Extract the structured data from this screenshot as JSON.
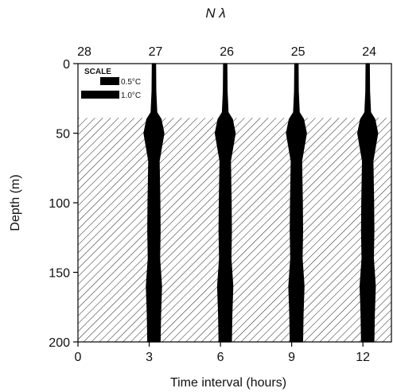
{
  "chart_data": {
    "type": "area",
    "title": "N λ",
    "xlabel": "Time interval (hours)",
    "ylabel": "Depth (m)",
    "xlim": [
      0,
      13.2
    ],
    "ylim": [
      0,
      200
    ],
    "x_ticks": [
      0,
      3,
      6,
      9,
      12
    ],
    "y_ticks": [
      0,
      50,
      100,
      150,
      200
    ],
    "top_ticks": [
      {
        "x": 0,
        "label": "28"
      },
      {
        "x": 3,
        "label": "27"
      },
      {
        "x": 6,
        "label": "26"
      },
      {
        "x": 9,
        "label": "25"
      },
      {
        "x": 12,
        "label": "24"
      }
    ],
    "shaded_region_depth": [
      39,
      200
    ],
    "scale": {
      "label": "SCALE",
      "items": [
        {
          "label": "0.5°C",
          "value": 0.5
        },
        {
          "label": "1.0°C",
          "value": 1.0
        }
      ]
    },
    "profile_depths": [
      0,
      20,
      35,
      40,
      50,
      60,
      70,
      100,
      120,
      140,
      160,
      180,
      200
    ],
    "profile_half_width_c": [
      0.07,
      0.08,
      0.12,
      0.3,
      0.42,
      0.32,
      0.22,
      0.25,
      0.26,
      0.24,
      0.32,
      0.28,
      0.26
    ],
    "series": [
      {
        "name": "27",
        "x": 3
      },
      {
        "name": "26",
        "x": 6
      },
      {
        "name": "25",
        "x": 9
      },
      {
        "name": "24",
        "x": 12
      }
    ]
  }
}
